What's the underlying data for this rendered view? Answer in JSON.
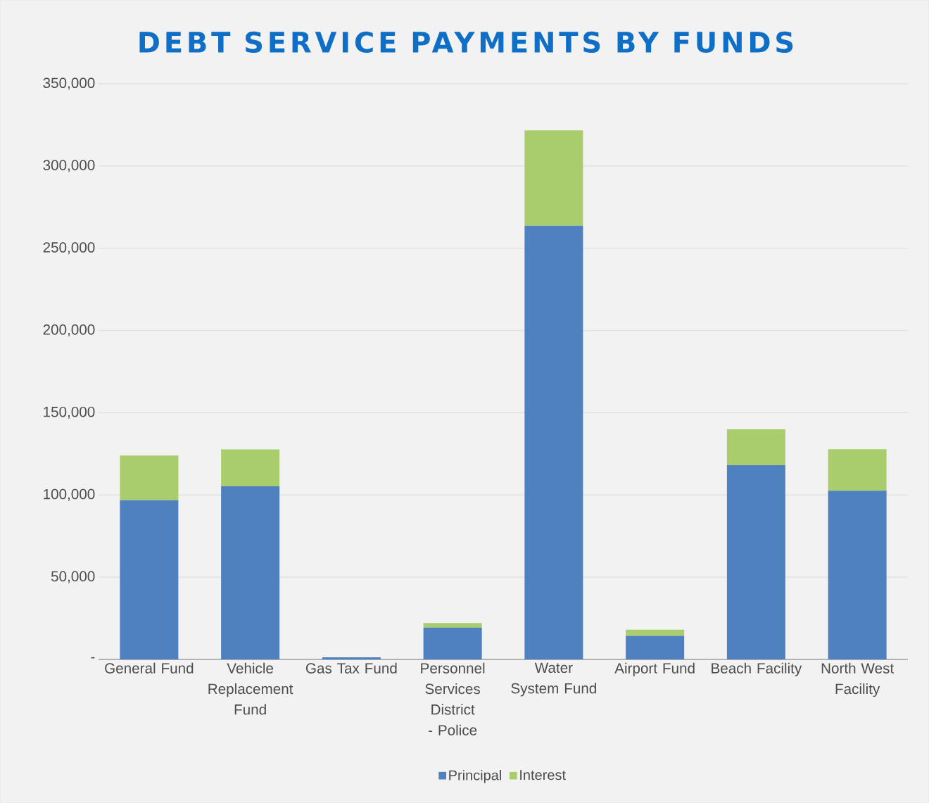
{
  "chart_data": {
    "type": "bar",
    "title": "DEBT SERVICE PAYMENTS BY FUNDS",
    "stacked": true,
    "categories": [
      "General Fund",
      "Vehicle Replacement Fund",
      "Gas Tax Fund",
      "Personnel Services District - Police",
      "Water System Fund",
      "Airport Fund",
      "Beach Facility",
      "North West Facility"
    ],
    "series": [
      {
        "name": "Principal",
        "color": "#4f81c0",
        "values": [
          96800,
          105300,
          1300,
          19400,
          263700,
          14300,
          118100,
          102600
        ]
      },
      {
        "name": "Interest",
        "color": "#a9cd6c",
        "values": [
          27200,
          22400,
          null,
          2700,
          57900,
          3800,
          21800,
          25200
        ]
      }
    ],
    "ylim": [
      0,
      350000
    ],
    "yticks": [
      {
        "value": 0,
        "label": "-"
      },
      {
        "value": 50000,
        "label": "50,000"
      },
      {
        "value": 100000,
        "label": "100,000"
      },
      {
        "value": 150000,
        "label": "150,000"
      },
      {
        "value": 200000,
        "label": "200,000"
      },
      {
        "value": 250000,
        "label": "250,000"
      },
      {
        "value": 300000,
        "label": "300,000"
      },
      {
        "value": 350000,
        "label": "350,000"
      }
    ],
    "grid": "y",
    "legend": "bottom"
  }
}
